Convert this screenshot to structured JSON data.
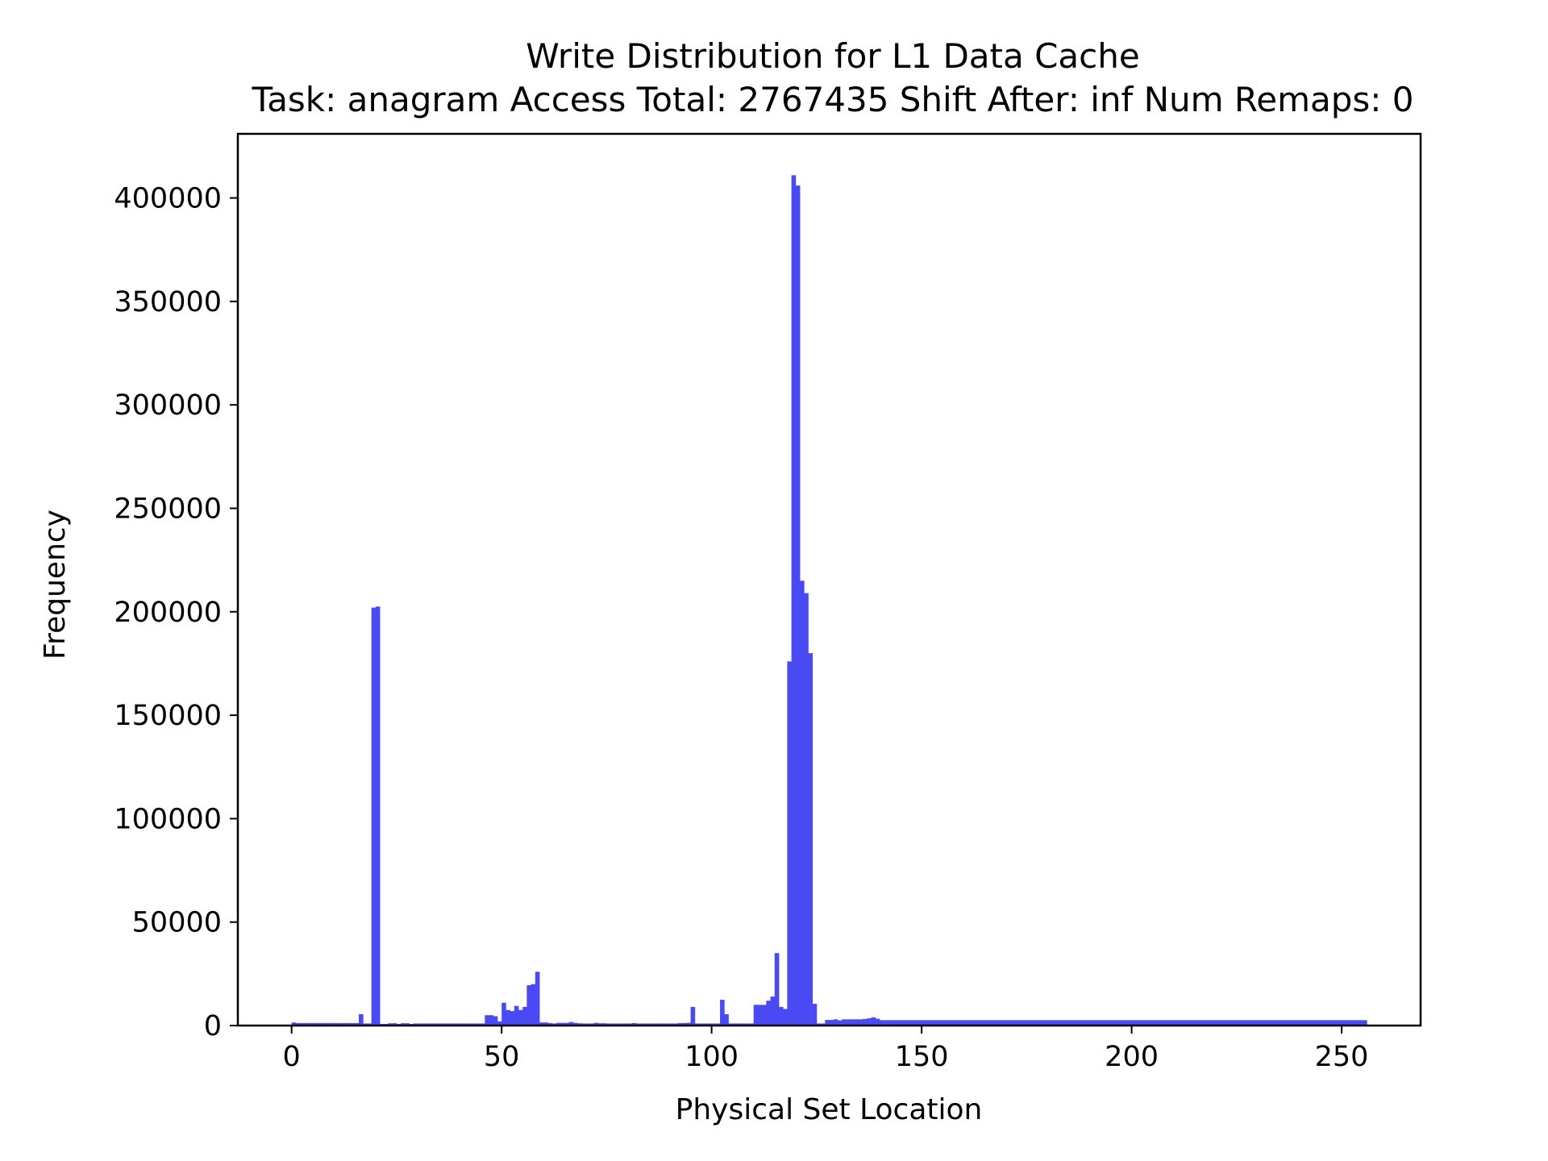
{
  "chart_data": {
    "type": "bar",
    "title": "Write Distribution for L1 Data Cache",
    "subtitle": "Task: anagram Access Total: 2767435 Shift After: inf Num Remaps: 0",
    "xlabel": "Physical Set Location",
    "ylabel": "Frequency",
    "xlim": [
      -12.8,
      268.8
    ],
    "ylim": [
      0,
      431000
    ],
    "xticks": [
      0,
      50,
      100,
      150,
      200,
      250
    ],
    "xtick_labels": [
      "0",
      "50",
      "100",
      "150",
      "200",
      "250"
    ],
    "yticks": [
      0,
      50000,
      100000,
      150000,
      200000,
      250000,
      300000,
      350000,
      400000
    ],
    "ytick_labels": [
      "0",
      "50000",
      "100000",
      "150000",
      "200000",
      "250000",
      "300000",
      "350000",
      "400000"
    ],
    "grid": false,
    "bar_color": "#4a4af4",
    "bins": [
      {
        "x": 0,
        "y": 1500
      },
      {
        "x": 1,
        "y": 1200
      },
      {
        "x": 2,
        "y": 1200
      },
      {
        "x": 3,
        "y": 1200
      },
      {
        "x": 4,
        "y": 1200
      },
      {
        "x": 5,
        "y": 1200
      },
      {
        "x": 6,
        "y": 1200
      },
      {
        "x": 7,
        "y": 1200
      },
      {
        "x": 8,
        "y": 1200
      },
      {
        "x": 9,
        "y": 1200
      },
      {
        "x": 10,
        "y": 1200
      },
      {
        "x": 11,
        "y": 1200
      },
      {
        "x": 12,
        "y": 1200
      },
      {
        "x": 13,
        "y": 1200
      },
      {
        "x": 14,
        "y": 1200
      },
      {
        "x": 15,
        "y": 1200
      },
      {
        "x": 16,
        "y": 5500
      },
      {
        "x": 17,
        "y": 1000
      },
      {
        "x": 18,
        "y": 1000
      },
      {
        "x": 19,
        "y": 202000
      },
      {
        "x": 20,
        "y": 202500
      },
      {
        "x": 21,
        "y": 800
      },
      {
        "x": 22,
        "y": 800
      },
      {
        "x": 23,
        "y": 1100
      },
      {
        "x": 24,
        "y": 1100
      },
      {
        "x": 25,
        "y": 800
      },
      {
        "x": 26,
        "y": 1100
      },
      {
        "x": 27,
        "y": 1100
      },
      {
        "x": 28,
        "y": 800
      },
      {
        "x": 29,
        "y": 1000
      },
      {
        "x": 30,
        "y": 1000
      },
      {
        "x": 31,
        "y": 1000
      },
      {
        "x": 32,
        "y": 1000
      },
      {
        "x": 33,
        "y": 1000
      },
      {
        "x": 34,
        "y": 1000
      },
      {
        "x": 35,
        "y": 1000
      },
      {
        "x": 36,
        "y": 1000
      },
      {
        "x": 37,
        "y": 1000
      },
      {
        "x": 38,
        "y": 1000
      },
      {
        "x": 39,
        "y": 1000
      },
      {
        "x": 40,
        "y": 1000
      },
      {
        "x": 41,
        "y": 1000
      },
      {
        "x": 42,
        "y": 1000
      },
      {
        "x": 43,
        "y": 1000
      },
      {
        "x": 44,
        "y": 1000
      },
      {
        "x": 45,
        "y": 1000
      },
      {
        "x": 46,
        "y": 5000
      },
      {
        "x": 47,
        "y": 5000
      },
      {
        "x": 48,
        "y": 4500
      },
      {
        "x": 49,
        "y": 2000
      },
      {
        "x": 50,
        "y": 11000
      },
      {
        "x": 51,
        "y": 7500
      },
      {
        "x": 52,
        "y": 7000
      },
      {
        "x": 53,
        "y": 9500
      },
      {
        "x": 54,
        "y": 7500
      },
      {
        "x": 55,
        "y": 9000
      },
      {
        "x": 56,
        "y": 19500
      },
      {
        "x": 57,
        "y": 20000
      },
      {
        "x": 58,
        "y": 26000
      },
      {
        "x": 59,
        "y": 1500
      },
      {
        "x": 60,
        "y": 1500
      },
      {
        "x": 61,
        "y": 1200
      },
      {
        "x": 62,
        "y": 1000
      },
      {
        "x": 63,
        "y": 1300
      },
      {
        "x": 64,
        "y": 1300
      },
      {
        "x": 65,
        "y": 1300
      },
      {
        "x": 66,
        "y": 1700
      },
      {
        "x": 67,
        "y": 1300
      },
      {
        "x": 68,
        "y": 1100
      },
      {
        "x": 69,
        "y": 1000
      },
      {
        "x": 70,
        "y": 1000
      },
      {
        "x": 71,
        "y": 1000
      },
      {
        "x": 72,
        "y": 1300
      },
      {
        "x": 73,
        "y": 1100
      },
      {
        "x": 74,
        "y": 1100
      },
      {
        "x": 75,
        "y": 1000
      },
      {
        "x": 76,
        "y": 1000
      },
      {
        "x": 77,
        "y": 1000
      },
      {
        "x": 78,
        "y": 1000
      },
      {
        "x": 79,
        "y": 1000
      },
      {
        "x": 80,
        "y": 1000
      },
      {
        "x": 81,
        "y": 1200
      },
      {
        "x": 82,
        "y": 1000
      },
      {
        "x": 83,
        "y": 1000
      },
      {
        "x": 84,
        "y": 1000
      },
      {
        "x": 85,
        "y": 1000
      },
      {
        "x": 86,
        "y": 1000
      },
      {
        "x": 87,
        "y": 1000
      },
      {
        "x": 88,
        "y": 1000
      },
      {
        "x": 89,
        "y": 1000
      },
      {
        "x": 90,
        "y": 1000
      },
      {
        "x": 91,
        "y": 1000
      },
      {
        "x": 92,
        "y": 1200
      },
      {
        "x": 93,
        "y": 1200
      },
      {
        "x": 94,
        "y": 1300
      },
      {
        "x": 95,
        "y": 9000
      },
      {
        "x": 96,
        "y": 1000
      },
      {
        "x": 97,
        "y": 1000
      },
      {
        "x": 98,
        "y": 1000
      },
      {
        "x": 99,
        "y": 1000
      },
      {
        "x": 100,
        "y": 1000
      },
      {
        "x": 101,
        "y": 1000
      },
      {
        "x": 102,
        "y": 12500
      },
      {
        "x": 103,
        "y": 5500
      },
      {
        "x": 104,
        "y": 1000
      },
      {
        "x": 105,
        "y": 1000
      },
      {
        "x": 106,
        "y": 1000
      },
      {
        "x": 107,
        "y": 1000
      },
      {
        "x": 108,
        "y": 1000
      },
      {
        "x": 109,
        "y": 1000
      },
      {
        "x": 110,
        "y": 10000
      },
      {
        "x": 111,
        "y": 10000
      },
      {
        "x": 112,
        "y": 10000
      },
      {
        "x": 113,
        "y": 12000
      },
      {
        "x": 114,
        "y": 14000
      },
      {
        "x": 115,
        "y": 35000
      },
      {
        "x": 116,
        "y": 9000
      },
      {
        "x": 117,
        "y": 8000
      },
      {
        "x": 118,
        "y": 176000
      },
      {
        "x": 119,
        "y": 411000
      },
      {
        "x": 120,
        "y": 406000
      },
      {
        "x": 121,
        "y": 215000
      },
      {
        "x": 122,
        "y": 209000
      },
      {
        "x": 123,
        "y": 180000
      },
      {
        "x": 124,
        "y": 10500
      },
      {
        "x": 125,
        "y": 1000
      },
      {
        "x": 126,
        "y": 1000
      },
      {
        "x": 127,
        "y": 2700
      },
      {
        "x": 128,
        "y": 2700
      },
      {
        "x": 129,
        "y": 3000
      },
      {
        "x": 130,
        "y": 2500
      },
      {
        "x": 131,
        "y": 3000
      },
      {
        "x": 132,
        "y": 3000
      },
      {
        "x": 133,
        "y": 3000
      },
      {
        "x": 134,
        "y": 3000
      },
      {
        "x": 135,
        "y": 3000
      },
      {
        "x": 136,
        "y": 3200
      },
      {
        "x": 137,
        "y": 3500
      },
      {
        "x": 138,
        "y": 4000
      },
      {
        "x": 139,
        "y": 3300
      }
    ],
    "tail": {
      "x_start": 140,
      "x_end": 255,
      "y": 2600
    }
  }
}
